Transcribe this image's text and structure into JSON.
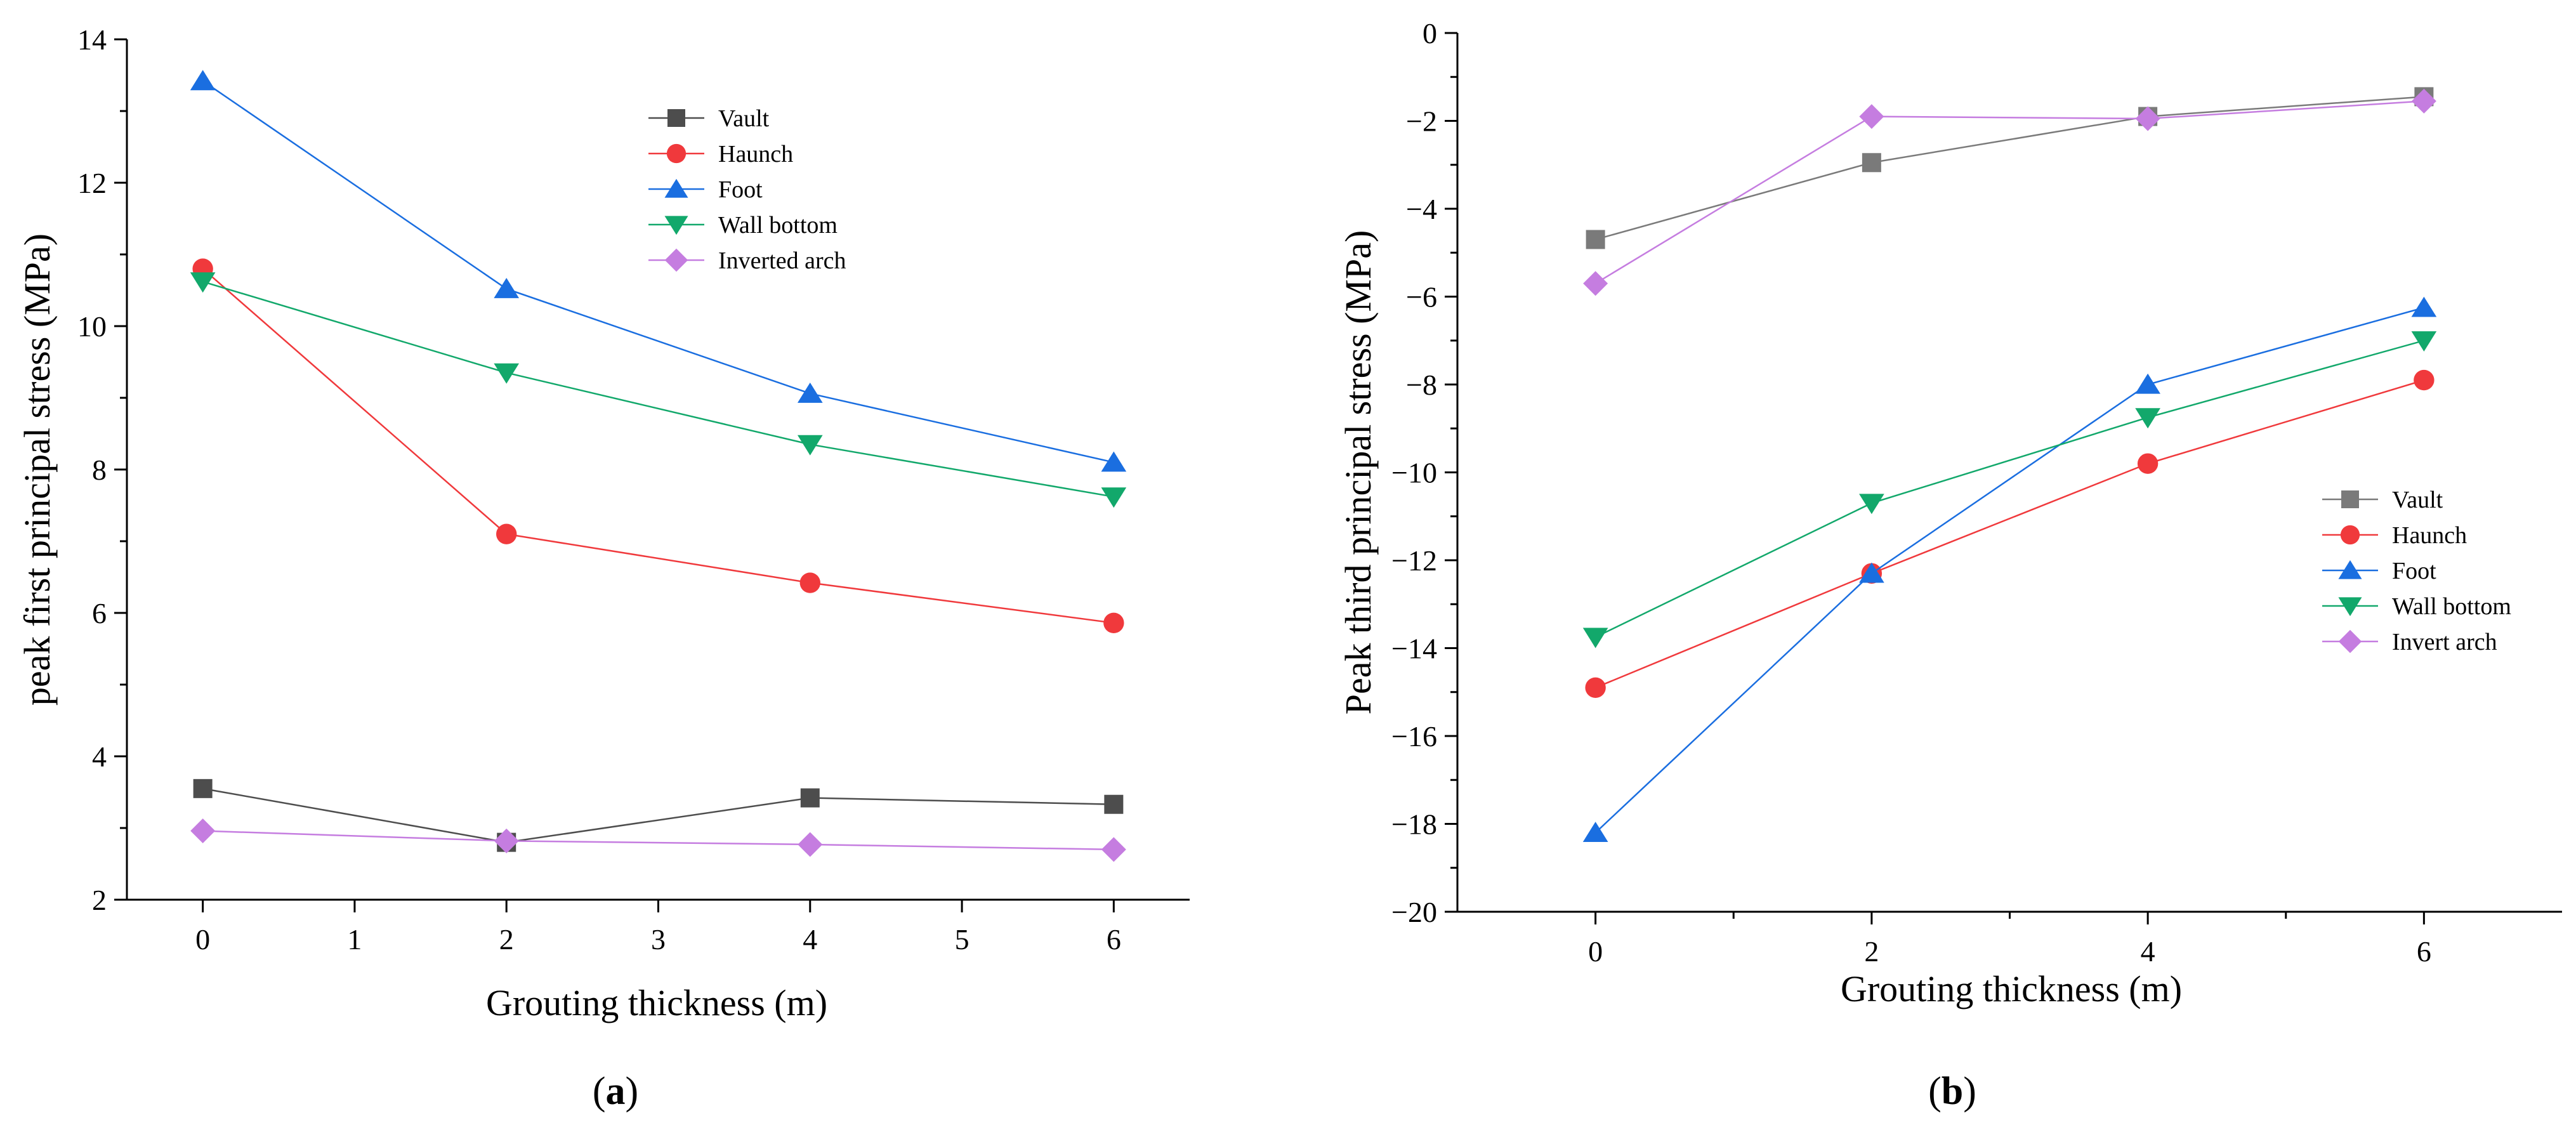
{
  "chart_data": [
    {
      "type": "line",
      "panel_label": {
        "open": "(",
        "letter": "a",
        "close": ")"
      },
      "xlabel": "Grouting thickness (m)",
      "ylabel": "peak first principal stress (MPa)",
      "xlim": [
        -0.5,
        6.5
      ],
      "ylim": [
        2,
        14
      ],
      "xticks": [
        0,
        1,
        2,
        3,
        4,
        5,
        6
      ],
      "xtick_labels": [
        "0",
        "1",
        "2",
        "3",
        "4",
        "5",
        "6"
      ],
      "yticks": [
        2,
        4,
        6,
        8,
        10,
        12,
        14
      ],
      "ytick_labels": [
        "2",
        "4",
        "6",
        "8",
        "10",
        "12",
        "14"
      ],
      "grid": false,
      "legend_position": "top-right",
      "x": [
        0,
        2,
        4,
        6
      ],
      "series": [
        {
          "name": "Vault",
          "marker": "square",
          "color": "#4d4d4d",
          "values": [
            3.55,
            2.8,
            3.42,
            3.33
          ]
        },
        {
          "name": "Haunch",
          "marker": "circle",
          "color": "#f0393c",
          "values": [
            10.8,
            7.1,
            6.42,
            5.86
          ]
        },
        {
          "name": "Foot",
          "marker": "triangle-up",
          "color": "#1a6ee0",
          "values": [
            13.42,
            10.52,
            9.06,
            8.1
          ]
        },
        {
          "name": "Wall bottom",
          "marker": "triangle-down",
          "color": "#12a86b",
          "values": [
            10.62,
            9.35,
            8.35,
            7.62
          ]
        },
        {
          "name": "Inverted arch",
          "marker": "diamond",
          "color": "#c57de0",
          "values": [
            2.96,
            2.82,
            2.77,
            2.7
          ]
        }
      ]
    },
    {
      "type": "line",
      "panel_label": {
        "open": "(",
        "letter": "b",
        "close": ")"
      },
      "xlabel": "Grouting thickness (m)",
      "ylabel": "Peak third principal stress (MPa)",
      "xlim": [
        -1,
        7
      ],
      "ylim": [
        -20,
        0
      ],
      "xticks": [
        0,
        2,
        4,
        6
      ],
      "xtick_labels": [
        "0",
        "2",
        "4",
        "6"
      ],
      "x_minor_ticks": [
        1,
        3,
        5
      ],
      "yticks": [
        -20,
        -18,
        -16,
        -14,
        -12,
        -10,
        -8,
        -6,
        -4,
        -2,
        0
      ],
      "ytick_labels": [
        "−20",
        "−18",
        "−16",
        "−14",
        "−12",
        "−10",
        "−8",
        "−6",
        "−4",
        "−2",
        "0"
      ],
      "grid": false,
      "legend_position": "middle-right",
      "x": [
        0,
        2,
        4,
        6
      ],
      "series": [
        {
          "name": "Vault",
          "marker": "square",
          "color": "#7a7a7a",
          "values": [
            -4.7,
            -2.95,
            -1.9,
            -1.45
          ]
        },
        {
          "name": "Haunch",
          "marker": "circle",
          "color": "#f0393c",
          "values": [
            -14.9,
            -12.3,
            -9.8,
            -7.9
          ]
        },
        {
          "name": "Foot",
          "marker": "triangle-up",
          "color": "#1a6ee0",
          "values": [
            -18.2,
            -12.3,
            -8.0,
            -6.25
          ]
        },
        {
          "name": "Wall bottom",
          "marker": "triangle-down",
          "color": "#12a86b",
          "values": [
            -13.75,
            -10.7,
            -8.75,
            -7.0
          ]
        },
        {
          "name": "Invert arch",
          "marker": "diamond",
          "color": "#c57de0",
          "values": [
            -5.7,
            -1.9,
            -1.95,
            -1.55
          ]
        }
      ]
    }
  ]
}
